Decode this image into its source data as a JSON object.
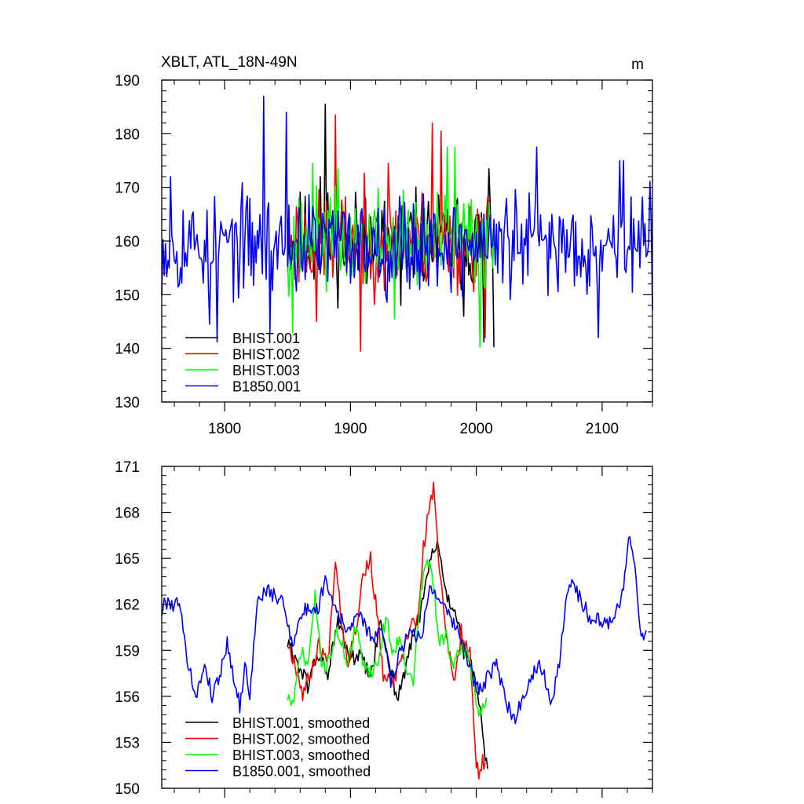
{
  "chart_data": [
    {
      "type": "line",
      "title": "XBLT, ATL_18N-49N",
      "units": "m",
      "xlim": [
        1750,
        2140
      ],
      "ylim": [
        130,
        190
      ],
      "xticks": [
        1800,
        1900,
        2000,
        2100
      ],
      "yticks": [
        130,
        140,
        150,
        160,
        170,
        180,
        190
      ],
      "legend_position": "bottom-left",
      "series": [
        {
          "name": "BHIST.001",
          "color": "#000000",
          "x_start": 1850,
          "x_end": 2014,
          "mean": 160,
          "amp": 7,
          "seed": 11,
          "peaks": [
            [
              1880,
              185.5
            ],
            [
              1876,
              172
            ],
            [
              1912,
              168
            ],
            [
              1940,
              148
            ],
            [
              1990,
              146
            ],
            [
              2010,
              173.5
            ],
            [
              2014,
              140.2
            ],
            [
              2006,
              141.2
            ]
          ]
        },
        {
          "name": "BHIST.002",
          "color": "#ff0000",
          "x_start": 1850,
          "x_end": 2014,
          "mean": 160,
          "amp": 7,
          "seed": 23,
          "peaks": [
            [
              1888,
              183.5
            ],
            [
              1908,
              139.5
            ],
            [
              1965,
              182
            ],
            [
              1972,
              180.5
            ],
            [
              1873,
              145
            ],
            [
              1930,
              174.5
            ],
            [
              2007,
              142
            ]
          ]
        },
        {
          "name": "BHIST.003",
          "color": "#00ff00",
          "x_start": 1850,
          "x_end": 2014,
          "mean": 160,
          "amp": 7,
          "seed": 37,
          "peaks": [
            [
              1854,
              143
            ],
            [
              1870,
              174.5
            ],
            [
              1890,
              173.5
            ],
            [
              1977,
              177.5
            ],
            [
              1983,
              177.5
            ],
            [
              2003,
              140.2
            ],
            [
              1935,
              145.5
            ]
          ]
        },
        {
          "name": "B1850.001",
          "color": "#0000ff",
          "x_start": 1750,
          "x_end": 2140,
          "mean": 159.5,
          "amp": 7,
          "seed": 53,
          "peaks": [
            [
              1831,
              187
            ],
            [
              1849,
              184
            ],
            [
              1794,
              141.2
            ],
            [
              1836,
              143
            ],
            [
              2097,
              142
            ],
            [
              2048,
              177.5
            ],
            [
              2114,
              175
            ],
            [
              2117,
              175
            ],
            [
              1788,
              144.5
            ],
            [
              1757,
              172
            ]
          ]
        }
      ]
    },
    {
      "type": "line",
      "xlim": [
        1750,
        2140
      ],
      "ylim": [
        150,
        171
      ],
      "xticks": [
        1800,
        1900,
        2000,
        2100
      ],
      "yticks": [
        150,
        153,
        156,
        159,
        162,
        165,
        168,
        171
      ],
      "legend_position": "bottom-left",
      "series": [
        {
          "name": "BHIST.001, smoothed",
          "color": "#000000",
          "x_start": 1850,
          "x_end": 2009,
          "seed": 61,
          "noise": 0.55,
          "path": [
            [
              1850,
              159.5
            ],
            [
              1858,
              158.2
            ],
            [
              1866,
              156.7
            ],
            [
              1874,
              158.8
            ],
            [
              1882,
              157.5
            ],
            [
              1890,
              160.8
            ],
            [
              1900,
              158.4
            ],
            [
              1908,
              158.6
            ],
            [
              1916,
              157.2
            ],
            [
              1924,
              160.8
            ],
            [
              1930,
              158.6
            ],
            [
              1937,
              155.8
            ],
            [
              1942,
              157.2
            ],
            [
              1950,
              160.0
            ],
            [
              1958,
              162.2
            ],
            [
              1964,
              165.2
            ],
            [
              1970,
              165.8
            ],
            [
              1976,
              162.6
            ],
            [
              1984,
              161.5
            ],
            [
              1990,
              158.8
            ],
            [
              1996,
              158.0
            ],
            [
              2002,
              155.6
            ],
            [
              2006,
              152.8
            ],
            [
              2009,
              150.8
            ]
          ]
        },
        {
          "name": "BHIST.002, smoothed",
          "color": "#ff0000",
          "x_start": 1850,
          "x_end": 2007,
          "seed": 67,
          "noise": 0.55,
          "path": [
            [
              1850,
              159.5
            ],
            [
              1856,
              158.2
            ],
            [
              1862,
              156.2
            ],
            [
              1868,
              157.4
            ],
            [
              1875,
              159.4
            ],
            [
              1882,
              158.2
            ],
            [
              1888,
              165.1
            ],
            [
              1893,
              161.0
            ],
            [
              1898,
              158.2
            ],
            [
              1905,
              160.8
            ],
            [
              1910,
              164.0
            ],
            [
              1916,
              164.9
            ],
            [
              1921,
              161.4
            ],
            [
              1926,
              157.4
            ],
            [
              1932,
              156.8
            ],
            [
              1940,
              158.0
            ],
            [
              1948,
              160.8
            ],
            [
              1954,
              161.0
            ],
            [
              1958,
              165.6
            ],
            [
              1962,
              168.0
            ],
            [
              1966,
              169.5
            ],
            [
              1970,
              165.2
            ],
            [
              1975,
              161.0
            ],
            [
              1982,
              156.6
            ],
            [
              1988,
              160.2
            ],
            [
              1995,
              159.0
            ],
            [
              1999,
              152.5
            ],
            [
              2002,
              150.5
            ],
            [
              2005,
              151.8
            ],
            [
              2007,
              151.2
            ]
          ]
        },
        {
          "name": "BHIST.003, smoothed",
          "color": "#00ff00",
          "x_start": 1850,
          "x_end": 2008,
          "seed": 71,
          "noise": 0.55,
          "path": [
            [
              1850,
              156.0
            ],
            [
              1855,
              155.4
            ],
            [
              1860,
              159.0
            ],
            [
              1866,
              158.0
            ],
            [
              1872,
              162.4
            ],
            [
              1878,
              157.6
            ],
            [
              1884,
              158.8
            ],
            [
              1890,
              160.2
            ],
            [
              1898,
              158.2
            ],
            [
              1904,
              160.4
            ],
            [
              1910,
              158.4
            ],
            [
              1916,
              157.6
            ],
            [
              1922,
              158.2
            ],
            [
              1928,
              161.2
            ],
            [
              1934,
              158.8
            ],
            [
              1940,
              160.0
            ],
            [
              1946,
              157.2
            ],
            [
              1950,
              157.0
            ],
            [
              1955,
              162.0
            ],
            [
              1960,
              164.8
            ],
            [
              1965,
              164.2
            ],
            [
              1970,
              159.4
            ],
            [
              1976,
              160.2
            ],
            [
              1982,
              157.6
            ],
            [
              1988,
              159.4
            ],
            [
              1994,
              158.6
            ],
            [
              1998,
              156.8
            ],
            [
              2002,
              154.8
            ],
            [
              2006,
              155.4
            ],
            [
              2008,
              156.0
            ]
          ]
        },
        {
          "name": "B1850.001, smoothed",
          "color": "#0000ff",
          "x_start": 1750,
          "x_end": 2135,
          "seed": 79,
          "noise": 0.5,
          "path": [
            [
              1750,
              161.5
            ],
            [
              1752,
              162.0
            ],
            [
              1756,
              162.3
            ],
            [
              1760,
              161.8
            ],
            [
              1764,
              162.5
            ],
            [
              1768,
              159.5
            ],
            [
              1774,
              157.0
            ],
            [
              1778,
              156.0
            ],
            [
              1784,
              158.2
            ],
            [
              1790,
              156.0
            ],
            [
              1796,
              157.4
            ],
            [
              1802,
              159.5
            ],
            [
              1808,
              157.0
            ],
            [
              1812,
              155.3
            ],
            [
              1816,
              158.0
            ],
            [
              1820,
              156.2
            ],
            [
              1826,
              162.0
            ],
            [
              1832,
              163.0
            ],
            [
              1838,
              162.6
            ],
            [
              1846,
              162.2
            ],
            [
              1854,
              159.5
            ],
            [
              1862,
              161.5
            ],
            [
              1868,
              161.8
            ],
            [
              1874,
              161.6
            ],
            [
              1880,
              163.8
            ],
            [
              1886,
              162.2
            ],
            [
              1892,
              161.2
            ],
            [
              1898,
              160.0
            ],
            [
              1904,
              161.5
            ],
            [
              1910,
              160.8
            ],
            [
              1918,
              159.8
            ],
            [
              1926,
              160.2
            ],
            [
              1932,
              157.0
            ],
            [
              1940,
              159.0
            ],
            [
              1948,
              160.5
            ],
            [
              1956,
              159.6
            ],
            [
              1962,
              163.0
            ],
            [
              1970,
              162.6
            ],
            [
              1976,
              161.4
            ],
            [
              1984,
              160.5
            ],
            [
              1992,
              158.8
            ],
            [
              1998,
              157.0
            ],
            [
              2004,
              156.4
            ],
            [
              2010,
              157.4
            ],
            [
              2016,
              158.0
            ],
            [
              2024,
              155.6
            ],
            [
              2030,
              154.4
            ],
            [
              2036,
              155.8
            ],
            [
              2044,
              157.2
            ],
            [
              2050,
              158.4
            ],
            [
              2056,
              156.8
            ],
            [
              2060,
              155.4
            ],
            [
              2066,
              158.2
            ],
            [
              2072,
              162.4
            ],
            [
              2076,
              164.0
            ],
            [
              2082,
              162.4
            ],
            [
              2090,
              161.2
            ],
            [
              2096,
              161.0
            ],
            [
              2104,
              160.6
            ],
            [
              2110,
              161.4
            ],
            [
              2114,
              162.2
            ],
            [
              2118,
              163.8
            ],
            [
              2122,
              166.6
            ],
            [
              2126,
              164.5
            ],
            [
              2130,
              160.2
            ],
            [
              2135,
              160.0
            ]
          ]
        }
      ]
    }
  ]
}
